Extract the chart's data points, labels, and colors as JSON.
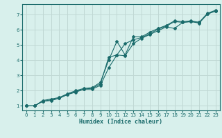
{
  "title": "",
  "xlabel": "Humidex (Indice chaleur)",
  "bg_color": "#d8f0ec",
  "grid_color": "#c0d8d4",
  "line_color": "#1a6b6b",
  "xlim": [
    -0.5,
    23.5
  ],
  "ylim": [
    0.7,
    7.7
  ],
  "xticks": [
    0,
    1,
    2,
    3,
    4,
    5,
    6,
    7,
    8,
    9,
    10,
    11,
    12,
    13,
    14,
    15,
    16,
    17,
    18,
    19,
    20,
    21,
    22,
    23
  ],
  "yticks": [
    1,
    2,
    3,
    4,
    5,
    6,
    7
  ],
  "line1_x": [
    0,
    1,
    2,
    3,
    4,
    5,
    6,
    7,
    8,
    9,
    10,
    11,
    12,
    13,
    14,
    15,
    16,
    17,
    18,
    19,
    20,
    21,
    22,
    23
  ],
  "line1_y": [
    1.0,
    1.0,
    1.3,
    1.35,
    1.5,
    1.75,
    1.95,
    2.1,
    2.15,
    2.45,
    4.2,
    4.35,
    5.1,
    5.35,
    5.5,
    5.75,
    6.05,
    6.25,
    6.55,
    6.5,
    6.55,
    6.5,
    7.05,
    7.25
  ],
  "line2_x": [
    0,
    1,
    2,
    3,
    4,
    5,
    6,
    7,
    8,
    9,
    10,
    11,
    12,
    13,
    14,
    15,
    16,
    17,
    18,
    19,
    20,
    21,
    22,
    23
  ],
  "line2_y": [
    1.0,
    1.0,
    1.3,
    1.4,
    1.5,
    1.75,
    1.9,
    2.1,
    2.1,
    2.35,
    3.5,
    4.35,
    4.3,
    5.1,
    5.45,
    5.7,
    5.95,
    6.2,
    6.1,
    6.5,
    6.55,
    6.45,
    7.05,
    7.25
  ],
  "line3_x": [
    0,
    1,
    2,
    3,
    4,
    5,
    6,
    7,
    8,
    9,
    10,
    11,
    12,
    13,
    14,
    15,
    16,
    17,
    18,
    19,
    20,
    21,
    22,
    23
  ],
  "line3_y": [
    1.0,
    1.0,
    1.35,
    1.45,
    1.55,
    1.8,
    2.0,
    2.15,
    2.2,
    2.55,
    4.0,
    5.25,
    4.35,
    5.55,
    5.55,
    5.85,
    6.1,
    6.3,
    6.6,
    6.55,
    6.6,
    6.5,
    7.1,
    7.3
  ]
}
